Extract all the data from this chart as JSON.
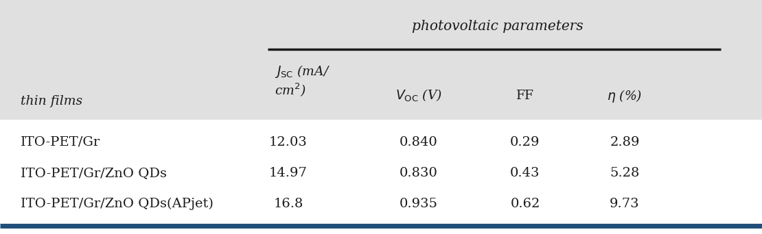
{
  "title": "photovoltaic parameters",
  "col_header_1": "thin films",
  "col_header_2_line1": "$J_{\\mathrm{SC}}$ (mA/",
  "col_header_2_line2": "cm$^{2}$)",
  "col_header_3": "$V_{\\mathrm{OC}}$ (V)",
  "col_header_4": "FF",
  "col_header_5": "$\\eta$ (%)",
  "rows": [
    [
      "ITO-PET/Gr",
      "12.03",
      "0.840",
      "0.29",
      "2.89"
    ],
    [
      "ITO-PET/Gr/ZnO QDs",
      "14.97",
      "0.830",
      "0.43",
      "5.28"
    ],
    [
      "ITO-PET/Gr/ZnO QDs(APjet)",
      "16.8",
      "0.935",
      "0.62",
      "9.73"
    ]
  ],
  "bg_header": "#e0e0e0",
  "bg_body": "#ffffff",
  "text_color": "#1a1a1a",
  "top_line_color": "#1a1a1a",
  "bottom_line_color": "#1f4e79",
  "header_fontsize": 13.5,
  "data_fontsize": 14,
  "title_fontsize": 14.5
}
